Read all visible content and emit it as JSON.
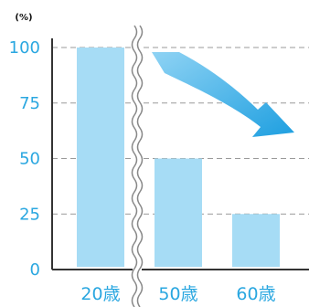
{
  "chart_data": {
    "type": "bar",
    "unit_label": "(%)",
    "categories": [
      "20歳",
      "50歳",
      "60歳"
    ],
    "values": [
      100,
      50,
      25
    ],
    "ylim": [
      0,
      100
    ],
    "y_ticks": [
      "100",
      "75",
      "50",
      "25",
      "0"
    ],
    "grid": true,
    "axis_break": "between 20歳 and 50歳",
    "trend_arrow": "downward, pointing right",
    "title": "",
    "xlabel": "",
    "ylabel": ""
  },
  "colors": {
    "bar": "#a6dcf5",
    "axis_text": "#2aa7e0",
    "axis_line": "#333333",
    "grid": "#9a9a9a",
    "arrow_light": "#8fd3f4",
    "arrow_dark": "#1e9fe0"
  }
}
